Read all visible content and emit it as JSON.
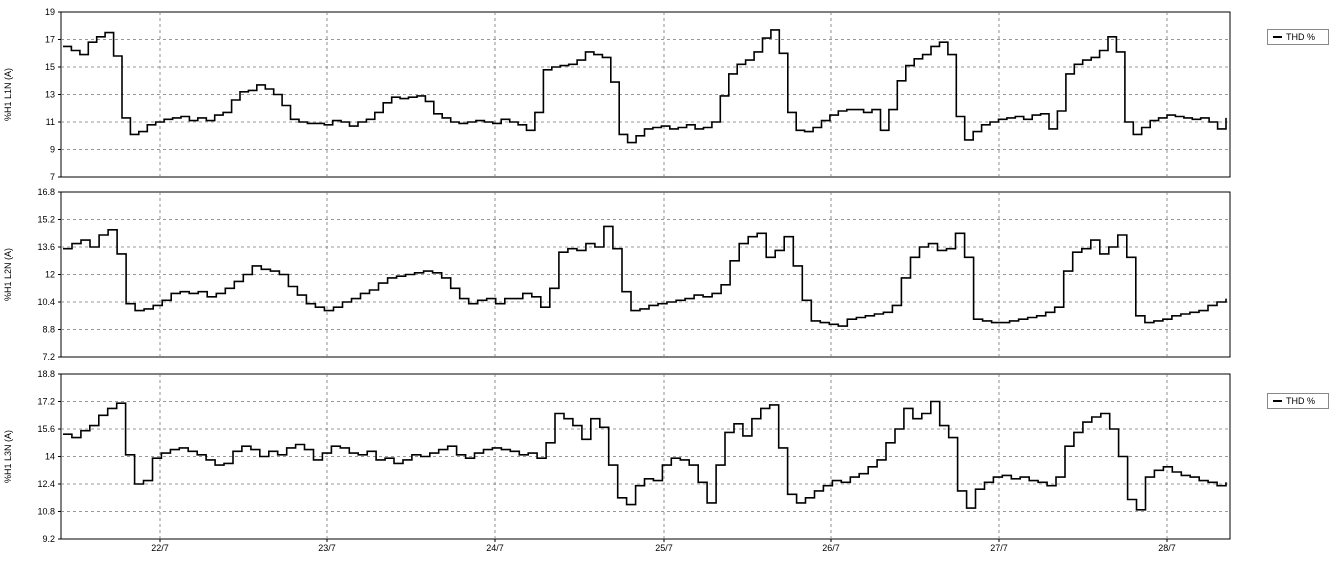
{
  "chart_data": [
    {
      "type": "line",
      "ylabel": "%H1 L1N (A)",
      "yticks": [
        "19",
        "17",
        "15",
        "13",
        "11",
        "9",
        "7"
      ],
      "ylim": [
        7,
        19
      ],
      "xtick_labels": [
        "22/7",
        "23/7",
        "24/7",
        "25/7",
        "26/7",
        "27/7",
        "28/7"
      ],
      "grid": true,
      "legend": "THD %",
      "legend_position": "right",
      "series": [
        {
          "values": [
            16.5,
            16.2,
            15.9,
            16.8,
            17.2,
            17.5,
            15.8,
            11.3,
            10.1,
            10.3,
            10.8,
            11.0,
            11.2,
            11.3,
            11.4,
            11.1,
            11.3,
            11.1,
            11.5,
            11.7,
            12.6,
            13.2,
            13.3,
            13.7,
            13.4,
            13.0,
            12.2,
            11.2,
            11.0,
            10.9,
            10.9,
            10.8,
            11.1,
            11.0,
            10.7,
            11.0,
            11.2,
            11.7,
            12.4,
            12.8,
            12.7,
            12.8,
            12.9,
            12.5,
            11.6,
            11.3,
            11.0,
            10.9,
            11.0,
            11.1,
            11.0,
            10.9,
            11.2,
            11.0,
            10.8,
            10.4,
            11.7,
            14.8,
            15.0,
            15.1,
            15.2,
            15.5,
            16.1,
            15.9,
            15.7,
            13.9,
            10.1,
            9.5,
            10.0,
            10.5,
            10.6,
            10.7,
            10.5,
            10.6,
            10.8,
            10.5,
            10.6,
            11.0,
            12.9,
            14.5,
            15.2,
            15.5,
            16.1,
            17.1,
            17.7,
            16.0,
            11.7,
            10.4,
            10.3,
            10.6,
            11.1,
            11.5,
            11.8,
            11.9,
            11.9,
            11.7,
            11.9,
            10.4,
            11.9,
            14.0,
            15.1,
            15.6,
            15.9,
            16.5,
            16.8,
            15.9,
            11.4,
            9.7,
            10.3,
            10.8,
            11.0,
            11.2,
            11.3,
            11.4,
            11.2,
            11.5,
            11.6,
            10.5,
            11.8,
            14.5,
            15.2,
            15.5,
            15.7,
            16.2,
            17.2,
            16.1,
            11.0,
            10.1,
            10.6,
            11.1,
            11.3,
            11.5,
            11.4,
            11.3,
            11.2,
            11.3,
            11.0,
            10.5,
            11.3
          ]
        }
      ]
    },
    {
      "type": "line",
      "ylabel": "%H1 L2N (A)",
      "yticks": [
        "16.8",
        "15.2",
        "13.6",
        "12",
        "10.4",
        "8.8",
        "7.2"
      ],
      "ylim": [
        7.2,
        16.8
      ],
      "xtick_labels": [
        "22/7",
        "23/7",
        "24/7",
        "25/7",
        "26/7",
        "27/7",
        "28/7"
      ],
      "grid": true,
      "series": [
        {
          "values": [
            13.5,
            13.8,
            14.0,
            13.6,
            14.3,
            14.6,
            13.2,
            10.3,
            9.9,
            10.0,
            10.2,
            10.5,
            10.9,
            11.0,
            10.9,
            11.0,
            10.7,
            10.9,
            11.2,
            11.6,
            12.0,
            12.5,
            12.3,
            12.2,
            12.0,
            11.3,
            10.8,
            10.3,
            10.1,
            9.9,
            10.1,
            10.4,
            10.6,
            10.9,
            11.1,
            11.5,
            11.8,
            11.9,
            12.0,
            12.1,
            12.2,
            12.1,
            11.8,
            11.2,
            10.6,
            10.3,
            10.5,
            10.6,
            10.3,
            10.6,
            10.6,
            10.9,
            10.7,
            10.1,
            11.2,
            13.3,
            13.5,
            13.4,
            13.8,
            13.6,
            14.8,
            13.5,
            11.0,
            9.9,
            10.0,
            10.2,
            10.3,
            10.4,
            10.5,
            10.6,
            10.8,
            10.7,
            10.9,
            11.4,
            12.8,
            13.8,
            14.2,
            14.4,
            13.0,
            13.4,
            14.2,
            12.5,
            10.5,
            9.3,
            9.2,
            9.1,
            9.0,
            9.4,
            9.5,
            9.6,
            9.7,
            9.8,
            10.2,
            11.8,
            13.0,
            13.6,
            13.8,
            13.4,
            13.5,
            14.4,
            13.0,
            9.4,
            9.3,
            9.2,
            9.2,
            9.3,
            9.4,
            9.5,
            9.6,
            9.8,
            10.1,
            12.2,
            13.3,
            13.5,
            14.0,
            13.2,
            13.6,
            14.3,
            13.0,
            9.6,
            9.2,
            9.3,
            9.4,
            9.6,
            9.7,
            9.8,
            9.9,
            10.2,
            10.4,
            10.6
          ]
        }
      ]
    },
    {
      "type": "line",
      "ylabel": "%H1 L3N (A)",
      "yticks": [
        "18.8",
        "17.2",
        "15.6",
        "14",
        "12.4",
        "10.8",
        "9.2"
      ],
      "ylim": [
        9.2,
        18.8
      ],
      "xtick_labels": [
        "22/7",
        "23/7",
        "24/7",
        "25/7",
        "26/7",
        "27/7",
        "28/7"
      ],
      "grid": true,
      "legend": "THD %",
      "legend_position": "right",
      "series": [
        {
          "values": [
            15.3,
            15.1,
            15.5,
            15.8,
            16.4,
            16.8,
            17.1,
            14.1,
            12.4,
            12.6,
            13.9,
            14.2,
            14.4,
            14.5,
            14.3,
            14.1,
            13.8,
            13.5,
            13.6,
            14.3,
            14.6,
            14.4,
            14.0,
            14.3,
            14.1,
            14.5,
            14.7,
            14.4,
            13.8,
            14.2,
            14.6,
            14.5,
            14.2,
            14.1,
            14.3,
            13.8,
            13.9,
            13.6,
            13.8,
            14.1,
            14.0,
            14.2,
            14.4,
            14.6,
            14.1,
            13.9,
            14.2,
            14.4,
            14.5,
            14.4,
            14.3,
            14.1,
            14.2,
            13.9,
            14.8,
            16.5,
            16.2,
            15.8,
            15.0,
            16.2,
            15.7,
            13.5,
            11.6,
            11.2,
            12.3,
            12.7,
            12.6,
            13.5,
            13.9,
            13.8,
            13.5,
            12.5,
            11.3,
            13.5,
            15.4,
            15.9,
            15.2,
            16.2,
            16.8,
            17.0,
            14.5,
            11.8,
            11.3,
            11.6,
            12.0,
            12.3,
            12.6,
            12.5,
            12.8,
            13.0,
            13.4,
            13.8,
            14.8,
            15.6,
            16.8,
            16.2,
            16.5,
            17.2,
            15.8,
            15.1,
            12.0,
            11.0,
            12.1,
            12.5,
            12.8,
            12.9,
            12.7,
            12.8,
            12.6,
            12.5,
            12.3,
            12.8,
            14.6,
            15.4,
            16.0,
            16.3,
            16.5,
            15.6,
            14.0,
            11.5,
            10.9,
            12.8,
            13.2,
            13.4,
            13.1,
            12.9,
            12.8,
            12.6,
            12.5,
            12.3,
            12.5
          ]
        }
      ]
    }
  ]
}
